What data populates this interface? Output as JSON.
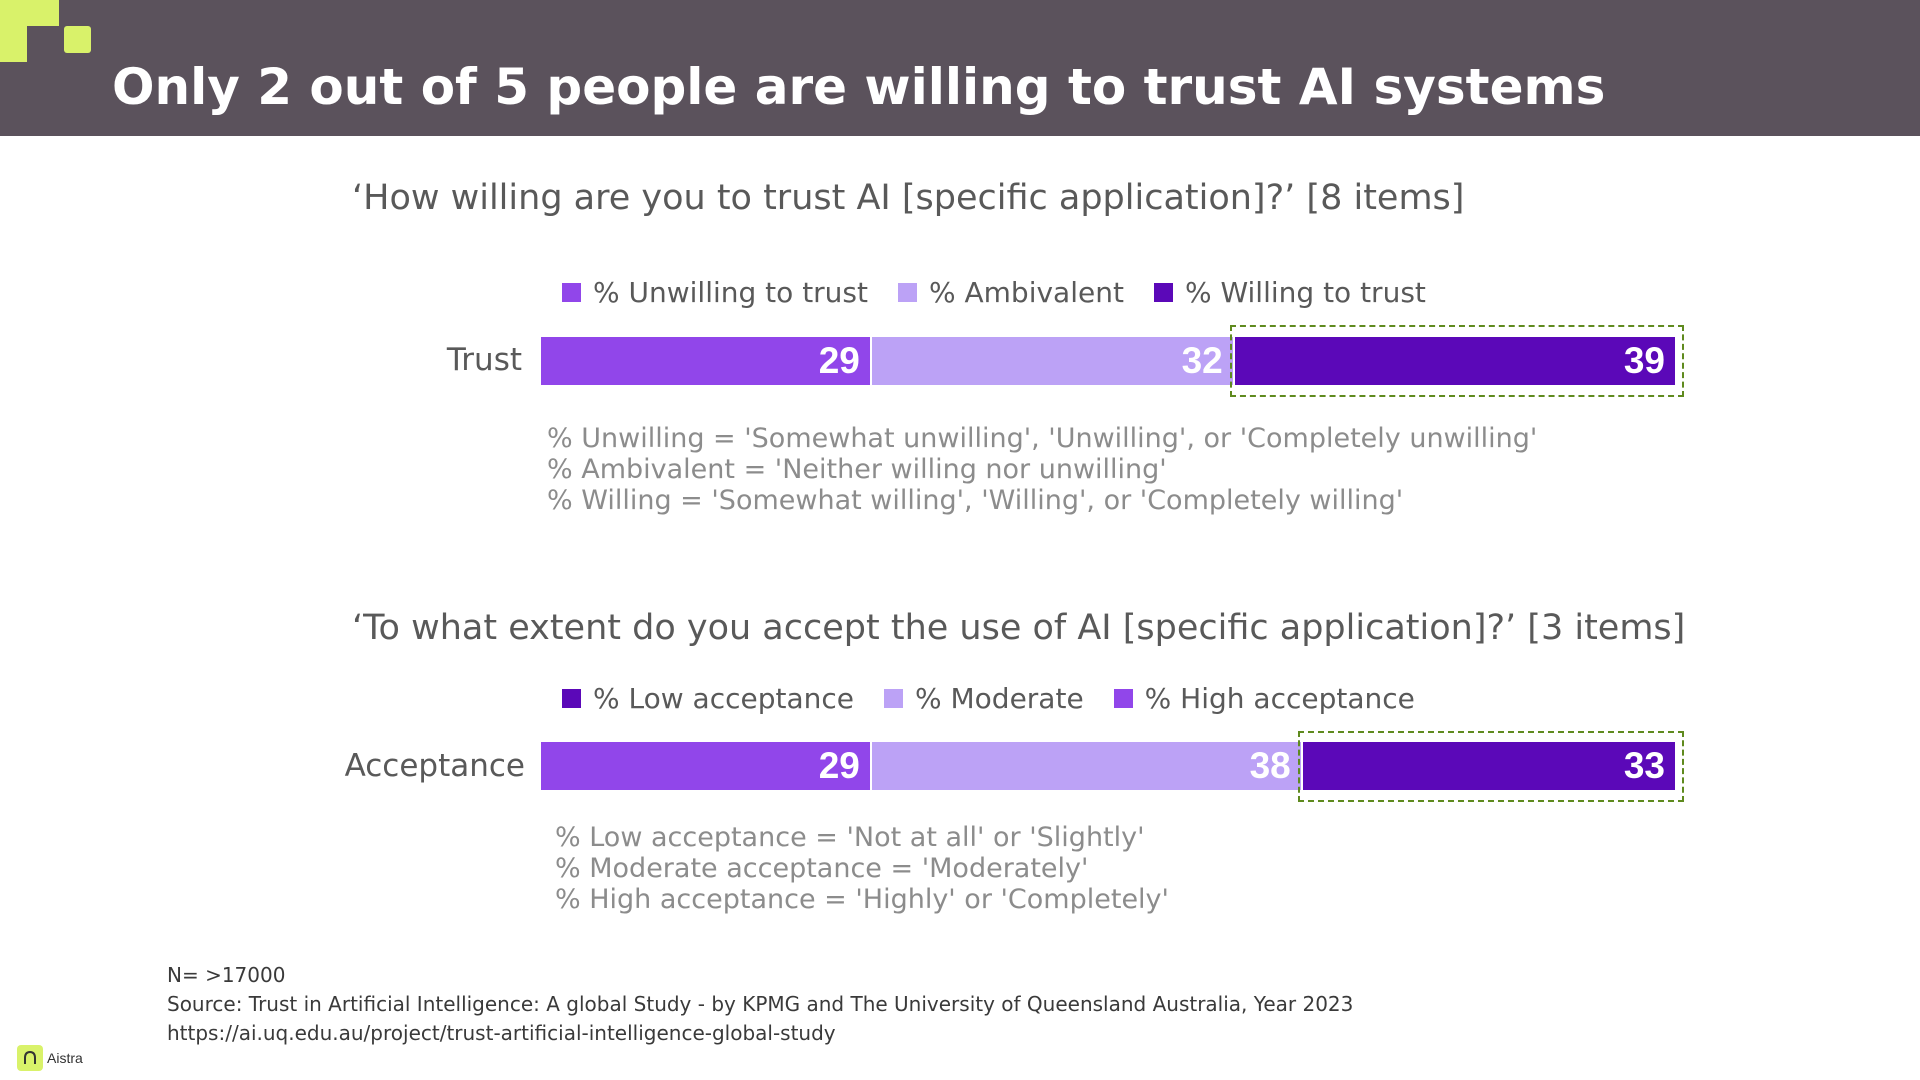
{
  "header": {
    "title": "Only 2 out of 5 people are willing to trust AI systems"
  },
  "colors": {
    "header_bg": "#5b525c",
    "accent_green": "#d9f26a",
    "seg_light_purple": "#9146ea",
    "seg_pale_purple": "#bca2f6",
    "seg_dark_purple": "#5b08b8",
    "highlight_border": "#5f8a1e"
  },
  "chart_data": [
    {
      "type": "bar",
      "orientation": "horizontal",
      "stacked": true,
      "title": "‘How willing are you to trust AI [specific application]?’ [8 items]",
      "categories": [
        "Trust"
      ],
      "legend": [
        "% Unwilling to trust",
        "% Ambivalent",
        "% Willing to trust"
      ],
      "series": [
        {
          "name": "% Unwilling to trust",
          "values": [
            29
          ],
          "color": "#9146ea"
        },
        {
          "name": "% Ambivalent",
          "values": [
            32
          ],
          "color": "#bca2f6"
        },
        {
          "name": "% Willing to trust",
          "values": [
            39
          ],
          "color": "#5b08b8"
        }
      ],
      "highlighted_series": "% Willing to trust",
      "xlim": [
        0,
        100
      ],
      "notes": [
        "% Unwilling = 'Somewhat unwilling', 'Unwilling', or 'Completely unwilling'",
        "% Ambivalent = 'Neither willing nor unwilling'",
        "% Willing = 'Somewhat willing', 'Willing', or 'Completely willing'"
      ]
    },
    {
      "type": "bar",
      "orientation": "horizontal",
      "stacked": true,
      "title": "‘To what extent do you accept the use of AI [specific application]?’ [3 items]",
      "categories": [
        "Acceptance"
      ],
      "legend": [
        "% Low acceptance",
        "% Moderate",
        "% High acceptance"
      ],
      "series": [
        {
          "name": "% Low acceptance",
          "values": [
            29
          ],
          "color": "#9146ea"
        },
        {
          "name": "% Moderate",
          "values": [
            38
          ],
          "color": "#bca2f6"
        },
        {
          "name": "% High acceptance",
          "values": [
            33
          ],
          "color": "#5b08b8"
        }
      ],
      "legend_swatch_colors": [
        "#5b08b8",
        "#bca2f6",
        "#9146ea"
      ],
      "highlighted_series": "% High acceptance",
      "xlim": [
        0,
        100
      ],
      "notes": [
        "% Low acceptance = 'Not at all' or 'Slightly'",
        "% Moderate acceptance = 'Moderately'",
        "% High acceptance = 'Highly' or 'Completely'"
      ]
    }
  ],
  "footer": {
    "sample": "N= >17000",
    "source": "Source: Trust in Artificial Intelligence: A global Study - by KPMG and The University of Queensland Australia, Year 2023",
    "url": "https://ai.uq.edu.au/project/trust-artificial-intelligence-global-study"
  },
  "logo": {
    "text": "Aistra"
  }
}
